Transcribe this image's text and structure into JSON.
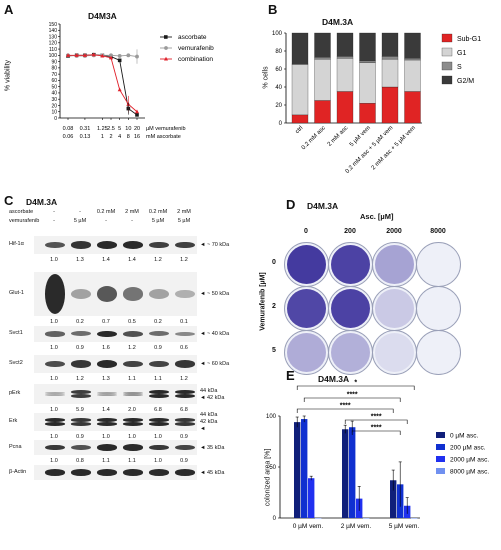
{
  "colors": {
    "ascorbate": "#1a1a1a",
    "vemurafenib": "#9a9a9a",
    "combination": "#e0202a",
    "subG1": "#e02424",
    "G1": "#d4d4d4",
    "S": "#8c8c8c",
    "G2M": "#3a3a3a",
    "asc0": "#101f7a",
    "asc200": "#1030d0",
    "asc2000": "#2030f0",
    "asc8000": "#7090f0",
    "crystal": "#3a2f9a"
  },
  "panels": {
    "A": {
      "letter": "A",
      "title": "D4M3A",
      "chart_data": {
        "type": "line",
        "ylabel": "% viability",
        "ylim": [
          0,
          150
        ],
        "yticks": [
          "0",
          "10",
          "20",
          "30",
          "40",
          "50",
          "60",
          "70",
          "80",
          "90",
          "100",
          "110",
          "120",
          "130",
          "140",
          "150"
        ],
        "x_rows": [
          {
            "label": "µM vemurafenib",
            "ticks": [
              "0.08",
              "0.31",
              "1.25",
              "2.5",
              "5",
              "10",
              "20"
            ]
          },
          {
            "label": "mM ascorbate",
            "ticks": [
              "0.06",
              "0.13",
              "1",
              "2",
              "4",
              "8",
              "16"
            ]
          }
        ],
        "x": [
          0.08,
          0.16,
          0.31,
          0.63,
          1.25,
          2.5,
          5,
          10,
          20
        ],
        "series": [
          {
            "name": "ascorbate",
            "values": [
              99,
              100,
              100,
              101,
              100,
              98,
              92,
              15,
              5
            ]
          },
          {
            "name": "vemurafenib",
            "values": [
              100,
              99,
              99,
              100,
              100,
              100,
              99,
              100,
              98
            ]
          },
          {
            "name": "combination",
            "values": [
              100,
              100,
              100,
              101,
              99,
              96,
              45,
              22,
              10
            ]
          }
        ]
      }
    },
    "B": {
      "letter": "B",
      "title": "D4M.3A",
      "chart_data": {
        "type": "bar",
        "stacked": true,
        "ylabel": "% cells",
        "ylim": [
          0,
          100
        ],
        "yticks": [
          "0",
          "20",
          "40",
          "60",
          "80",
          "100"
        ],
        "categories": [
          "ctrl",
          "0.2 mM asc",
          "2 mM asc",
          "5 µM vem",
          "0.2 mM asc + 5 µM vem",
          "2 mM asc + 5 µM vem"
        ],
        "series": [
          {
            "name": "Sub-G1",
            "values": [
              9,
              25,
              35,
              22,
              40,
              35
            ]
          },
          {
            "name": "G1",
            "values": [
              56,
              46,
              37,
              45,
              31,
              35
            ]
          },
          {
            "name": "S",
            "values": [
              1,
              2,
              2,
              2,
              3,
              2
            ]
          },
          {
            "name": "G2/M",
            "values": [
              34,
              27,
              26,
              31,
              26,
              28
            ]
          }
        ],
        "legend_position": "right"
      }
    },
    "C": {
      "letter": "C",
      "title": "D4M.3A",
      "treat_rows": [
        {
          "label": "ascorbate",
          "values": [
            "-",
            "-",
            "0.2 mM",
            "2 mM",
            "0.2 mM",
            "2 mM"
          ]
        },
        {
          "label": "vemurafenib",
          "values": [
            "-",
            "5 µM",
            "-",
            "-",
            "5 µM",
            "5 µM"
          ]
        }
      ],
      "blots": [
        {
          "label": "Hif-1α",
          "kda": [
            "◄ ~ 70 kDa"
          ],
          "quant": [
            "1.0",
            "1.3",
            "1.4",
            "1.4",
            "1.2",
            "1.2"
          ]
        },
        {
          "label": "Glut-1",
          "kda": [
            "◄ ~ 50 kDa"
          ],
          "quant": [
            "1.0",
            "0.2",
            "0.7",
            "0.5",
            "0.2",
            "0.1"
          ]
        },
        {
          "label": "Svct1",
          "kda": [
            "◄ ~ 40 kDa"
          ],
          "quant": [
            "1.0",
            "0.9",
            "1.6",
            "1.2",
            "0.9",
            "0.6"
          ]
        },
        {
          "label": "Svct2",
          "kda": [
            "◄ ~ 60 kDa"
          ],
          "quant": [
            "1.0",
            "1.2",
            "1.3",
            "1.1",
            "1.1",
            "1.2"
          ]
        },
        {
          "label": "pErk",
          "kda": [
            "44 kDa",
            "◄ 42 kDa"
          ],
          "quant": [
            "1.0",
            "5.9",
            "1.4",
            "2.0",
            "6.8",
            "6.8"
          ]
        },
        {
          "label": "Erk",
          "kda": [
            "44 kDa",
            "42 kDa",
            "◄"
          ],
          "quant": [
            "1.0",
            "0.9",
            "1.0",
            "1.0",
            "1.0",
            "0.9"
          ]
        },
        {
          "label": "Pcna",
          "kda": [
            "◄ 35 kDa"
          ],
          "quant": [
            "1.0",
            "0.8",
            "1.1",
            "1.1",
            "1.0",
            "0.9"
          ]
        },
        {
          "label": "β-Actin",
          "kda": [
            "◄ 45 kDa"
          ],
          "quant": []
        }
      ]
    },
    "D": {
      "letter": "D",
      "title": "D4M.3A",
      "col_header": "Asc. [µM]",
      "cols": [
        "0",
        "200",
        "2000",
        "8000"
      ],
      "row_header": "Vemurafenib [µM]",
      "rows": [
        "0",
        "2",
        "5"
      ],
      "coverage": [
        [
          0.95,
          0.9,
          0.4,
          0.0
        ],
        [
          0.88,
          0.9,
          0.2,
          0.0
        ],
        [
          0.35,
          0.33,
          0.1,
          0.0
        ]
      ]
    },
    "E": {
      "letter": "E",
      "title": "D4M.3A",
      "chart_data": {
        "type": "bar",
        "ylabel": "colonized area [%]",
        "ylim": [
          0,
          100
        ],
        "yticks": [
          "0",
          "50",
          "100"
        ],
        "categories": [
          "0 µM vem.",
          "2 µM vem.",
          "5 µM vem."
        ],
        "series": [
          {
            "name": "0 µM asc.",
            "values": [
              94,
              87,
              37
            ],
            "err": [
              5,
              4,
              10
            ]
          },
          {
            "name": "200 µM asc.",
            "values": [
              97,
              89,
              33
            ],
            "err": [
              3,
              6,
              22
            ]
          },
          {
            "name": "2000 µM asc.",
            "values": [
              39,
              19,
              12
            ],
            "err": [
              2,
              12,
              8
            ]
          },
          {
            "name": "8000 µM asc.",
            "values": [
              0,
              0,
              0
            ],
            "err": [
              0,
              0,
              0
            ]
          }
        ],
        "significance": [
          "*",
          "****",
          "****",
          "****",
          "****"
        ],
        "legend_position": "right"
      }
    }
  }
}
